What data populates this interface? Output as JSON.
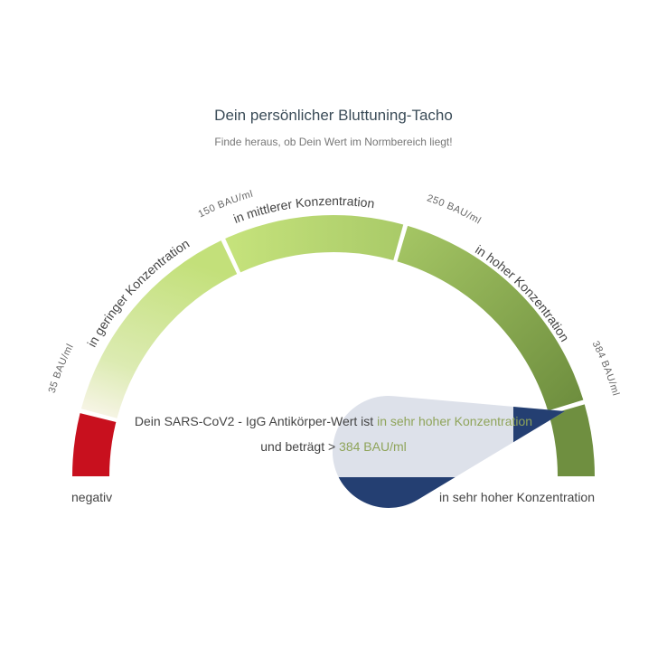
{
  "header": {
    "title": "Dein persönlicher Bluttuning-Tacho",
    "subtitle": "Finde heraus, ob Dein Wert im Normbereich liegt!"
  },
  "chart_data": {
    "type": "gauge",
    "unit": "BAU/ml",
    "segments": [
      {
        "label": "negativ",
        "color": "#c8101e"
      },
      {
        "label": "in geringer Konzentration",
        "color": "#c3e07a"
      },
      {
        "label": "in mittlerer Konzentration",
        "color": "#bcdb75"
      },
      {
        "label": "in hoher Konzentration",
        "color": "#88ab4f"
      },
      {
        "label": "in sehr hoher Konzentration",
        "color": "#6f8f40"
      }
    ],
    "thresholds": [
      "35 BAU/ml",
      "150 BAU/ml",
      "250 BAU/ml",
      "384 BAU/ml"
    ],
    "needle_color": "#243f72",
    "pointer_segment": "in sehr hoher Konzentration"
  },
  "result": {
    "line1_prefix": "Dein SARS-CoV2 - IgG Antikörper-Wert ist ",
    "line1_highlight": "in sehr hoher Konzentration",
    "line2_prefix": "und beträgt > ",
    "line2_highlight": "384 BAU/ml"
  }
}
